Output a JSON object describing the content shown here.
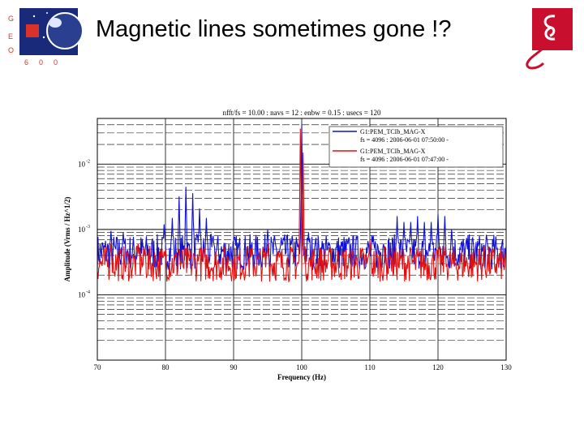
{
  "slide": {
    "title": "Magnetic lines sometimes gone !?"
  },
  "logos": {
    "left_letters": [
      "G",
      "E",
      "O",
      "6",
      "0",
      "0"
    ],
    "left_icon": "geo600-planet-logo",
    "right_icon": "red-script-g-logo",
    "colors": {
      "navy": "#1a2a7a",
      "planet": "#2a3f8f",
      "red": "#c8102e",
      "accent": "#d8322a"
    }
  },
  "chart_data": {
    "type": "line",
    "title": "nfft/fs = 10.00 : navs = 12 : enbw = 0.15 : usecs = 120",
    "xlabel": "Frequency (Hz)",
    "ylabel": "Amplitude (Vrms / Hz^1/2)",
    "xlim": [
      70,
      130
    ],
    "ylim": [
      1e-05,
      0.05
    ],
    "yscale": "log",
    "x_ticks": [
      "70",
      "80",
      "90",
      "100",
      "110",
      "120",
      "130"
    ],
    "y_ticks": [
      {
        "base": "10",
        "exp": "-2",
        "value": 0.01
      },
      {
        "base": "10",
        "exp": "-3",
        "value": 0.001
      },
      {
        "base": "10",
        "exp": "-4",
        "value": 0.0001
      }
    ],
    "grid": true,
    "legend_position": "top-right",
    "series": [
      {
        "name": "G1:PEM_TCIb_MAG-X",
        "legend_detail": "fs = 4096 : 2006-06-01 07:50:00 -",
        "color": "#1010d0",
        "baseline": 0.00045,
        "peaks": [
          {
            "x": 72.0,
            "y": 0.00095
          },
          {
            "x": 73.8,
            "y": 0.0009
          },
          {
            "x": 76.0,
            "y": 0.0006
          },
          {
            "x": 79.8,
            "y": 0.0012
          },
          {
            "x": 81.0,
            "y": 0.0015
          },
          {
            "x": 82.0,
            "y": 0.0032
          },
          {
            "x": 83.0,
            "y": 0.0045
          },
          {
            "x": 84.0,
            "y": 0.0036
          },
          {
            "x": 85.0,
            "y": 0.0021
          },
          {
            "x": 86.0,
            "y": 0.0015
          },
          {
            "x": 87.0,
            "y": 0.0008
          },
          {
            "x": 95.0,
            "y": 0.001
          },
          {
            "x": 97.0,
            "y": 0.00075
          },
          {
            "x": 100.0,
            "y": 0.04
          },
          {
            "x": 101.0,
            "y": 0.0009
          },
          {
            "x": 102.0,
            "y": 0.00065
          },
          {
            "x": 103.0,
            "y": 0.0005
          },
          {
            "x": 108.0,
            "y": 0.0006
          },
          {
            "x": 112.0,
            "y": 0.0006
          },
          {
            "x": 114.0,
            "y": 0.0016
          },
          {
            "x": 115.0,
            "y": 0.0013
          },
          {
            "x": 116.0,
            "y": 0.0013
          },
          {
            "x": 117.0,
            "y": 0.0016
          },
          {
            "x": 118.0,
            "y": 0.0013
          },
          {
            "x": 119.0,
            "y": 0.0013
          },
          {
            "x": 120.0,
            "y": 0.0017
          },
          {
            "x": 121.0,
            "y": 0.0016
          },
          {
            "x": 122.0,
            "y": 0.001
          },
          {
            "x": 126.0,
            "y": 0.0006
          }
        ]
      },
      {
        "name": "G1:PEM_TCIb_MAG-X",
        "legend_detail": "fs = 4096 : 2006-06-01 07:47:00 -",
        "color": "#e01010",
        "baseline": 0.0003,
        "peaks": [
          {
            "x": 72.0,
            "y": 0.0006
          },
          {
            "x": 76.0,
            "y": 0.0006
          },
          {
            "x": 77.0,
            "y": 0.0005
          },
          {
            "x": 80.0,
            "y": 0.0005
          },
          {
            "x": 82.0,
            "y": 0.0005
          },
          {
            "x": 85.0,
            "y": 0.0005
          },
          {
            "x": 92.0,
            "y": 0.0004
          },
          {
            "x": 95.0,
            "y": 0.0006
          },
          {
            "x": 99.8,
            "y": 0.035
          },
          {
            "x": 100.2,
            "y": 0.015
          },
          {
            "x": 104.0,
            "y": 0.0004
          },
          {
            "x": 106.0,
            "y": 0.0004
          },
          {
            "x": 110.0,
            "y": 0.0007
          },
          {
            "x": 113.0,
            "y": 0.0004
          },
          {
            "x": 121.0,
            "y": 0.0004
          },
          {
            "x": 130.0,
            "y": 0.0004
          }
        ]
      }
    ]
  }
}
